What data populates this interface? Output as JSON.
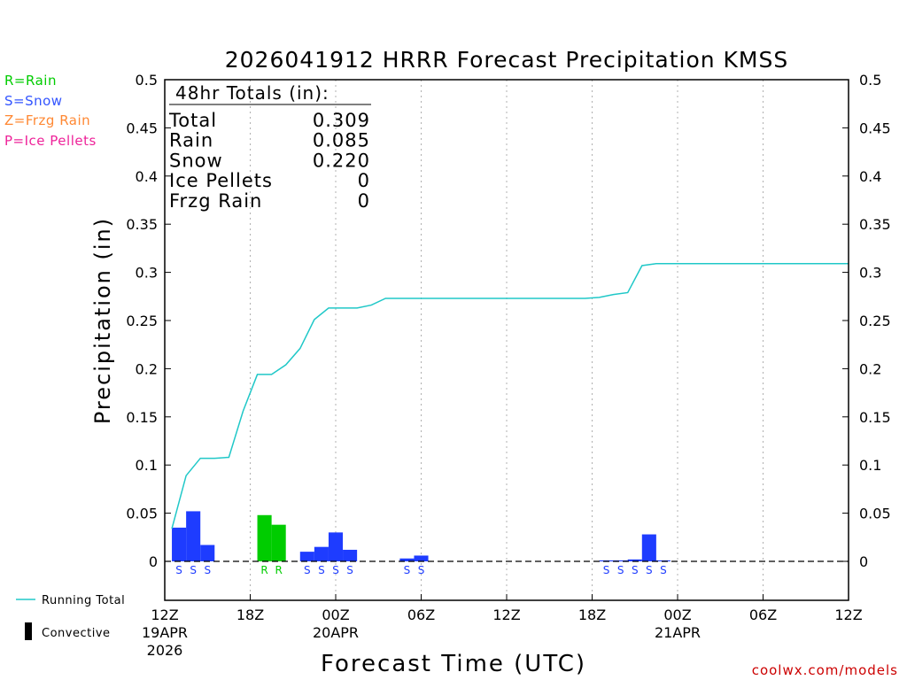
{
  "chart_data": {
    "type": "bar",
    "title": "2026041912 HRRR Forecast Precipitation KMSS",
    "xlabel": "Forecast Time (UTC)",
    "ylabel": "Precipitation (in)",
    "ylim": [
      0,
      0.5
    ],
    "yticks": [
      "0",
      "0.05",
      "0.1",
      "0.15",
      "0.2",
      "0.25",
      "0.3",
      "0.35",
      "0.4",
      "0.45",
      "0.5"
    ],
    "xlim_hours": [
      0,
      48
    ],
    "xticks": [
      {
        "hour": 0,
        "label": "12Z",
        "sub1": "19APR",
        "sub2": "2026"
      },
      {
        "hour": 6,
        "label": "18Z",
        "sub1": "",
        "sub2": ""
      },
      {
        "hour": 12,
        "label": "00Z",
        "sub1": "20APR",
        "sub2": ""
      },
      {
        "hour": 18,
        "label": "06Z",
        "sub1": "",
        "sub2": ""
      },
      {
        "hour": 24,
        "label": "12Z",
        "sub1": "",
        "sub2": ""
      },
      {
        "hour": 30,
        "label": "18Z",
        "sub1": "",
        "sub2": ""
      },
      {
        "hour": 36,
        "label": "00Z",
        "sub1": "21APR",
        "sub2": ""
      },
      {
        "hour": 42,
        "label": "06Z",
        "sub1": "",
        "sub2": ""
      },
      {
        "hour": 48,
        "label": "12Z",
        "sub1": "",
        "sub2": ""
      }
    ],
    "type_legend": [
      {
        "text": "R=Rain",
        "color": "#00cc00"
      },
      {
        "text": "S=Snow",
        "color": "#3355ff"
      },
      {
        "text": "Z=Frzg Rain",
        "color": "#ff8833"
      },
      {
        "text": "P=Ice Pellets",
        "color": "#ee2299"
      }
    ],
    "colors": {
      "snow": "#1e3cff",
      "rain": "#00cc00",
      "running_total": "#20c8c8"
    },
    "bars": [
      {
        "hour": 1,
        "value": 0.035,
        "ptype": "S"
      },
      {
        "hour": 2,
        "value": 0.052,
        "ptype": "S"
      },
      {
        "hour": 3,
        "value": 0.017,
        "ptype": "S"
      },
      {
        "hour": 7,
        "value": 0.048,
        "ptype": "R"
      },
      {
        "hour": 8,
        "value": 0.038,
        "ptype": "R"
      },
      {
        "hour": 10,
        "value": 0.01,
        "ptype": "S"
      },
      {
        "hour": 11,
        "value": 0.015,
        "ptype": "S"
      },
      {
        "hour": 12,
        "value": 0.03,
        "ptype": "S"
      },
      {
        "hour": 13,
        "value": 0.012,
        "ptype": "S"
      },
      {
        "hour": 17,
        "value": 0.003,
        "ptype": "S"
      },
      {
        "hour": 18,
        "value": 0.006,
        "ptype": "S"
      },
      {
        "hour": 31,
        "value": 0.001,
        "ptype": "S"
      },
      {
        "hour": 32,
        "value": 0.001,
        "ptype": "S"
      },
      {
        "hour": 33,
        "value": 0.002,
        "ptype": "S"
      },
      {
        "hour": 34,
        "value": 0.028,
        "ptype": "S"
      },
      {
        "hour": 35,
        "value": 0.001,
        "ptype": "S"
      }
    ],
    "running_total": {
      "name": "Running Total",
      "x": [
        0.5,
        1.5,
        2.5,
        3.5,
        4.5,
        5.5,
        6.5,
        7.5,
        8.5,
        9.5,
        10.5,
        11.5,
        12.5,
        13.5,
        14.5,
        15.5,
        16.5,
        17.5,
        18.5,
        19.5,
        29.5,
        30.5,
        31.5,
        32.5,
        33.5,
        34.5,
        35.5,
        48
      ],
      "y": [
        0.034,
        0.089,
        0.107,
        0.107,
        0.108,
        0.156,
        0.194,
        0.194,
        0.204,
        0.221,
        0.251,
        0.263,
        0.263,
        0.263,
        0.266,
        0.273,
        0.273,
        0.273,
        0.273,
        0.273,
        0.273,
        0.274,
        0.277,
        0.279,
        0.307,
        0.309,
        0.309,
        0.309
      ]
    },
    "totals_box": {
      "header": "48hr Totals (in):",
      "rows": [
        {
          "label": "Total",
          "value": "0.309"
        },
        {
          "label": "Rain",
          "value": "0.085"
        },
        {
          "label": "Snow",
          "value": "0.220"
        },
        {
          "label": "Ice Pellets",
          "value": "0"
        },
        {
          "label": "Frzg Rain",
          "value": "0"
        }
      ]
    },
    "key": {
      "running_total_label": "Running Total",
      "convective_label": "Convective"
    }
  },
  "credit": "coolwx.com/models"
}
